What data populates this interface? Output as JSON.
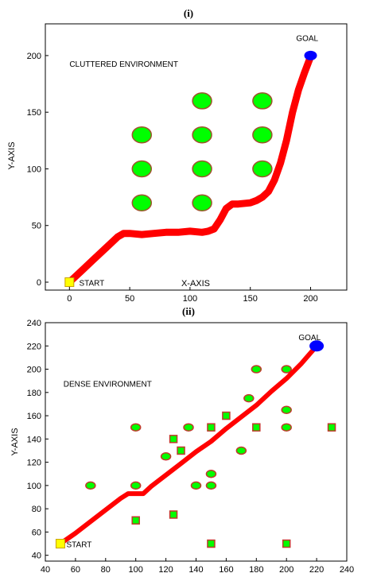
{
  "chart_data": [
    {
      "type": "line",
      "title": "(i)",
      "xlabel": "X-AXIS",
      "ylabel": "Y-AXIS",
      "xlim": [
        -20,
        230
      ],
      "ylim": [
        -7,
        228
      ],
      "xticks": [
        0,
        50,
        100,
        150,
        200
      ],
      "yticks": [
        0,
        50,
        100,
        150,
        200
      ],
      "grid": false,
      "annotations": [
        {
          "text": "CLUTTERED ENVIRONMENT",
          "x": 0,
          "y": 190
        },
        {
          "text": "START",
          "x": 8,
          "y": -3
        },
        {
          "text": "GOAL",
          "x": 188,
          "y": 213
        }
      ],
      "path": {
        "color": "#ff0000",
        "x": [
          0,
          10,
          20,
          30,
          40,
          45,
          50,
          60,
          70,
          80,
          90,
          100,
          110,
          115,
          120,
          125,
          130,
          135,
          140,
          150,
          155,
          160,
          165,
          170,
          175,
          180,
          185,
          190,
          195,
          200
        ],
        "y": [
          0,
          10,
          20,
          30,
          40,
          43,
          43,
          42,
          43,
          44,
          44,
          45,
          44,
          45,
          47,
          55,
          65,
          69,
          69,
          70,
          72,
          75,
          80,
          90,
          105,
          125,
          150,
          170,
          185,
          199
        ]
      },
      "start": {
        "x": 0,
        "y": 0,
        "color": "#ffff00"
      },
      "goal": {
        "x": 200,
        "y": 200,
        "color": "#0000ff"
      },
      "obstacles": {
        "shape": "ellipse",
        "fill": "#00ff00",
        "stroke": "#a0522d",
        "points": [
          {
            "x": 60,
            "y": 130
          },
          {
            "x": 60,
            "y": 100
          },
          {
            "x": 60,
            "y": 70
          },
          {
            "x": 110,
            "y": 160
          },
          {
            "x": 110,
            "y": 130
          },
          {
            "x": 110,
            "y": 100
          },
          {
            "x": 110,
            "y": 70
          },
          {
            "x": 160,
            "y": 160
          },
          {
            "x": 160,
            "y": 130
          },
          {
            "x": 160,
            "y": 100
          }
        ]
      }
    },
    {
      "type": "line",
      "title": "(ii)",
      "xlabel": "",
      "ylabel": "Y-AXIS",
      "xlim": [
        40,
        240
      ],
      "ylim": [
        35,
        240
      ],
      "xticks": [
        40,
        60,
        80,
        100,
        120,
        140,
        160,
        180,
        200,
        220,
        240
      ],
      "yticks": [
        40,
        60,
        80,
        100,
        120,
        140,
        160,
        180,
        200,
        220,
        240
      ],
      "grid": false,
      "annotations": [
        {
          "text": "DENSE ENVIRONMENT",
          "x": 52,
          "y": 185
        },
        {
          "text": "START",
          "x": 54,
          "y": 47
        },
        {
          "text": "GOAL",
          "x": 208,
          "y": 225
        }
      ],
      "path": {
        "color": "#ff0000",
        "x": [
          50,
          60,
          70,
          80,
          90,
          95,
          100,
          105,
          110,
          120,
          130,
          140,
          150,
          160,
          170,
          180,
          190,
          200,
          210,
          220
        ],
        "y": [
          50,
          59,
          69,
          79,
          89,
          93,
          93,
          93,
          99,
          109,
          119,
          129,
          138,
          149,
          159,
          169,
          181,
          192,
          205,
          220
        ]
      },
      "start": {
        "x": 50,
        "y": 50,
        "color": "#ffff00"
      },
      "goal": {
        "x": 220,
        "y": 220,
        "color": "#0000ff"
      },
      "obstacles": {
        "fill": "#00ff00",
        "stroke": "#c0392b",
        "points": [
          {
            "x": 70,
            "y": 100,
            "shape": "ellipse"
          },
          {
            "x": 100,
            "y": 150,
            "shape": "ellipse"
          },
          {
            "x": 100,
            "y": 100,
            "shape": "ellipse"
          },
          {
            "x": 100,
            "y": 70,
            "shape": "square"
          },
          {
            "x": 120,
            "y": 125,
            "shape": "ellipse"
          },
          {
            "x": 125,
            "y": 140,
            "shape": "square"
          },
          {
            "x": 130,
            "y": 130,
            "shape": "square"
          },
          {
            "x": 135,
            "y": 150,
            "shape": "ellipse"
          },
          {
            "x": 140,
            "y": 100,
            "shape": "ellipse"
          },
          {
            "x": 125,
            "y": 75,
            "shape": "square"
          },
          {
            "x": 150,
            "y": 150,
            "shape": "square"
          },
          {
            "x": 150,
            "y": 110,
            "shape": "ellipse"
          },
          {
            "x": 150,
            "y": 100,
            "shape": "ellipse"
          },
          {
            "x": 150,
            "y": 50,
            "shape": "square"
          },
          {
            "x": 160,
            "y": 160,
            "shape": "square"
          },
          {
            "x": 170,
            "y": 130,
            "shape": "ellipse"
          },
          {
            "x": 175,
            "y": 175,
            "shape": "ellipse"
          },
          {
            "x": 180,
            "y": 200,
            "shape": "ellipse"
          },
          {
            "x": 180,
            "y": 150,
            "shape": "square"
          },
          {
            "x": 200,
            "y": 200,
            "shape": "ellipse"
          },
          {
            "x": 200,
            "y": 165,
            "shape": "ellipse"
          },
          {
            "x": 200,
            "y": 150,
            "shape": "ellipse"
          },
          {
            "x": 200,
            "y": 50,
            "shape": "square"
          },
          {
            "x": 230,
            "y": 150,
            "shape": "square"
          }
        ]
      }
    }
  ]
}
